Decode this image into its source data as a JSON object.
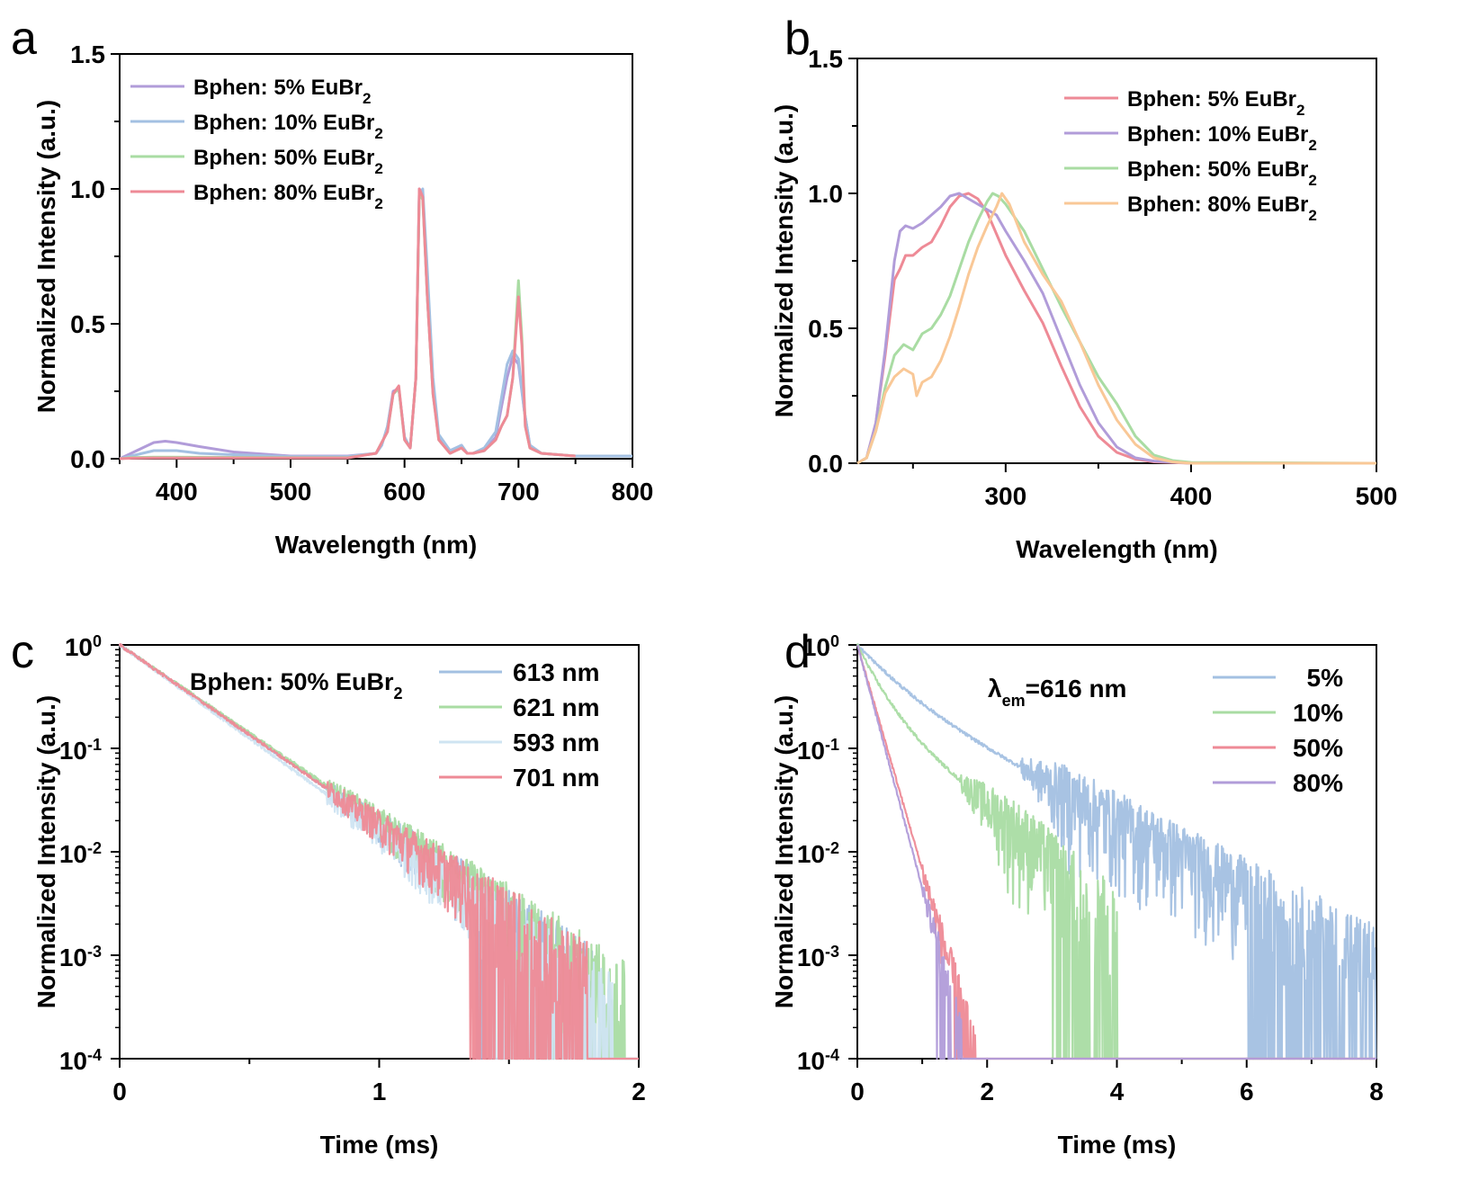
{
  "colors": {
    "purple": "#b19cd9",
    "blue": "#a3c0e2",
    "green": "#a9dca3",
    "red": "#ee8a96",
    "orange": "#f9c897",
    "lightblue": "#cfe4f2",
    "axis": "#000000"
  },
  "chart_data": [
    {
      "panel": "a",
      "type": "line",
      "xlabel": "Wavelength (nm)",
      "ylabel": "Normalized Intensity (a.u.)",
      "xlim": [
        350,
        800
      ],
      "ylim": [
        0,
        1.5
      ],
      "yscale": "linear",
      "xticks": [
        "400",
        "500",
        "600",
        "700",
        "800"
      ],
      "yticks": [
        "0.0",
        "0.5",
        "1.0",
        "1.5"
      ],
      "legend_position": "top-left",
      "series": [
        {
          "name": "Bphen: 5% EuBr",
          "sub": "2",
          "color": "purple",
          "x": [
            350,
            360,
            370,
            380,
            390,
            400,
            420,
            450,
            500,
            550,
            575,
            580,
            585,
            590,
            595,
            600,
            605,
            610,
            613,
            616,
            620,
            625,
            630,
            640,
            650,
            655,
            660,
            670,
            680,
            690,
            695,
            700,
            705,
            710,
            720,
            750,
            800
          ],
          "y": [
            0.0,
            0.02,
            0.04,
            0.06,
            0.065,
            0.06,
            0.045,
            0.025,
            0.01,
            0.01,
            0.02,
            0.05,
            0.12,
            0.25,
            0.26,
            0.08,
            0.04,
            0.3,
            1.0,
            0.98,
            0.6,
            0.25,
            0.08,
            0.03,
            0.05,
            0.02,
            0.02,
            0.03,
            0.08,
            0.3,
            0.38,
            0.35,
            0.18,
            0.05,
            0.02,
            0.01,
            0.01
          ]
        },
        {
          "name": "Bphen: 10% EuBr",
          "sub": "2",
          "color": "blue",
          "x": [
            350,
            360,
            370,
            380,
            390,
            400,
            420,
            450,
            500,
            550,
            575,
            580,
            585,
            590,
            595,
            600,
            605,
            610,
            613,
            616,
            620,
            625,
            630,
            640,
            650,
            655,
            660,
            670,
            680,
            690,
            695,
            700,
            705,
            710,
            720,
            750,
            800
          ],
          "y": [
            0.0,
            0.01,
            0.02,
            0.03,
            0.03,
            0.03,
            0.02,
            0.015,
            0.008,
            0.008,
            0.02,
            0.05,
            0.12,
            0.24,
            0.26,
            0.08,
            0.04,
            0.3,
            0.98,
            1.0,
            0.7,
            0.3,
            0.09,
            0.03,
            0.05,
            0.02,
            0.02,
            0.04,
            0.1,
            0.35,
            0.4,
            0.37,
            0.18,
            0.05,
            0.02,
            0.01,
            0.01
          ]
        },
        {
          "name": "Bphen: 50% EuBr",
          "sub": "2",
          "color": "green",
          "x": [
            350,
            360,
            380,
            400,
            450,
            500,
            550,
            575,
            580,
            585,
            590,
            595,
            600,
            605,
            610,
            613,
            616,
            620,
            625,
            630,
            640,
            650,
            655,
            660,
            670,
            680,
            685,
            690,
            695,
            700,
            703,
            706,
            710,
            720,
            750
          ],
          "y": [
            0.0,
            0.004,
            0.006,
            0.006,
            0.005,
            0.004,
            0.004,
            0.02,
            0.06,
            0.1,
            0.24,
            0.26,
            0.07,
            0.04,
            0.3,
            0.98,
            0.96,
            0.6,
            0.24,
            0.07,
            0.02,
            0.04,
            0.02,
            0.02,
            0.03,
            0.07,
            0.12,
            0.16,
            0.3,
            0.66,
            0.45,
            0.12,
            0.04,
            0.02,
            0.01
          ]
        },
        {
          "name": "Bphen: 80% EuBr",
          "sub": "2",
          "color": "red",
          "x": [
            350,
            360,
            380,
            400,
            450,
            500,
            550,
            575,
            580,
            585,
            590,
            595,
            600,
            605,
            610,
            613,
            616,
            620,
            625,
            630,
            640,
            650,
            655,
            660,
            670,
            680,
            685,
            690,
            695,
            700,
            703,
            706,
            710,
            720,
            750
          ],
          "y": [
            0.0,
            0.002,
            0.003,
            0.003,
            0.003,
            0.003,
            0.003,
            0.02,
            0.06,
            0.1,
            0.24,
            0.27,
            0.07,
            0.04,
            0.3,
            1.0,
            0.97,
            0.6,
            0.24,
            0.07,
            0.02,
            0.04,
            0.02,
            0.02,
            0.03,
            0.07,
            0.12,
            0.16,
            0.3,
            0.6,
            0.42,
            0.12,
            0.04,
            0.02,
            0.01
          ]
        }
      ]
    },
    {
      "panel": "b",
      "type": "line",
      "xlabel": "Wavelength (nm)",
      "ylabel": "Normalized Intensity (a.u.)",
      "xlim": [
        220,
        500
      ],
      "ylim": [
        0,
        1.5
      ],
      "yscale": "linear",
      "xticks": [
        "300",
        "400",
        "500"
      ],
      "yticks": [
        "0.0",
        "0.5",
        "1.0",
        "1.5"
      ],
      "legend_position": "top-right",
      "series": [
        {
          "name": "Bphen: 5% EuBr",
          "sub": "2",
          "color": "red",
          "x": [
            220,
            225,
            230,
            235,
            240,
            243,
            246,
            250,
            255,
            260,
            265,
            270,
            275,
            280,
            285,
            290,
            295,
            300,
            310,
            320,
            330,
            340,
            350,
            360,
            370,
            380,
            400,
            500
          ],
          "y": [
            0.0,
            0.02,
            0.15,
            0.4,
            0.68,
            0.72,
            0.77,
            0.77,
            0.8,
            0.82,
            0.88,
            0.95,
            0.99,
            1.0,
            0.98,
            0.93,
            0.85,
            0.77,
            0.64,
            0.52,
            0.36,
            0.21,
            0.1,
            0.04,
            0.015,
            0.005,
            0.0,
            0.0
          ]
        },
        {
          "name": "Bphen: 10% EuBr",
          "sub": "2",
          "color": "purple",
          "x": [
            220,
            225,
            230,
            235,
            240,
            243,
            246,
            250,
            255,
            260,
            265,
            270,
            275,
            280,
            285,
            290,
            295,
            300,
            310,
            320,
            330,
            340,
            350,
            360,
            370,
            380,
            400,
            500
          ],
          "y": [
            0.0,
            0.02,
            0.15,
            0.42,
            0.75,
            0.86,
            0.88,
            0.87,
            0.89,
            0.92,
            0.95,
            0.99,
            1.0,
            0.98,
            0.96,
            0.94,
            0.92,
            0.86,
            0.75,
            0.63,
            0.46,
            0.29,
            0.15,
            0.06,
            0.02,
            0.008,
            0.0,
            0.0
          ]
        },
        {
          "name": "Bphen: 50% EuBr",
          "sub": "2",
          "color": "green",
          "x": [
            220,
            225,
            230,
            235,
            240,
            245,
            250,
            255,
            260,
            265,
            270,
            275,
            280,
            285,
            290,
            293,
            296,
            300,
            310,
            320,
            330,
            340,
            350,
            360,
            370,
            380,
            390,
            400,
            500
          ],
          "y": [
            0.0,
            0.02,
            0.12,
            0.28,
            0.4,
            0.44,
            0.42,
            0.48,
            0.5,
            0.55,
            0.62,
            0.72,
            0.82,
            0.9,
            0.97,
            1.0,
            0.99,
            0.96,
            0.86,
            0.72,
            0.58,
            0.45,
            0.32,
            0.22,
            0.1,
            0.03,
            0.01,
            0.003,
            0.0
          ]
        },
        {
          "name": "Bphen: 80% EuBr",
          "sub": "2",
          "color": "orange",
          "x": [
            220,
            225,
            230,
            235,
            240,
            245,
            250,
            252,
            255,
            260,
            265,
            270,
            275,
            280,
            285,
            290,
            295,
            298,
            302,
            310,
            320,
            330,
            340,
            350,
            360,
            370,
            380,
            390,
            400,
            500
          ],
          "y": [
            0.0,
            0.02,
            0.12,
            0.26,
            0.32,
            0.35,
            0.33,
            0.25,
            0.3,
            0.32,
            0.38,
            0.47,
            0.58,
            0.7,
            0.8,
            0.88,
            0.95,
            1.0,
            0.96,
            0.82,
            0.7,
            0.6,
            0.45,
            0.29,
            0.16,
            0.07,
            0.02,
            0.005,
            0.0,
            0.0
          ]
        }
      ]
    },
    {
      "panel": "c",
      "type": "line",
      "title": "Bphen: 50% EuBr",
      "title_sub": "2",
      "xlabel": "Time (ms)",
      "ylabel": "Normalized Intensity (a.u.)",
      "xlim": [
        0,
        2
      ],
      "ylim": [
        0.0001,
        1
      ],
      "yscale": "log",
      "xticks": [
        "0",
        "1",
        "2"
      ],
      "yticks_exp": [
        "0",
        "-1",
        "-2",
        "-3",
        "-4"
      ],
      "legend_position": "top-right",
      "series": [
        {
          "name": "613 nm",
          "color": "blue",
          "tau": 0.25,
          "noise_onset": 0.8,
          "noise_end": 1.82
        },
        {
          "name": "621 nm",
          "color": "green",
          "tau": 0.255,
          "noise_onset": 0.8,
          "noise_end": 1.95
        },
        {
          "name": "593 nm",
          "color": "lightblue",
          "tau": 0.24,
          "noise_onset": 0.8,
          "noise_end": 1.9
        },
        {
          "name": "701 nm",
          "color": "red",
          "tau": 0.25,
          "noise_onset": 0.8,
          "noise_end": 1.8
        }
      ]
    },
    {
      "panel": "d",
      "type": "line",
      "title": "λ",
      "title_sub": "em",
      "title_rest": "=616 nm",
      "xlabel": "Time (ms)",
      "ylabel": "Normalized Intensity (a.u.)",
      "xlim": [
        0,
        8
      ],
      "ylim": [
        0.0001,
        1
      ],
      "yscale": "log",
      "xticks": [
        "0",
        "2",
        "4",
        "6",
        "8"
      ],
      "yticks_exp": [
        "0",
        "-1",
        "-2",
        "-3",
        "-4"
      ],
      "legend_position": "top-right",
      "series": [
        {
          "name": "5%",
          "color": "blue",
          "a": 0.6,
          "tau1": 0.5,
          "b": 0.4,
          "tau2": 1.35,
          "noise_onset": 2.5,
          "noise_end": 8.0
        },
        {
          "name": "10%",
          "color": "green",
          "a": 0.7,
          "tau1": 0.28,
          "b": 0.3,
          "tau2": 0.85,
          "noise_onset": 1.6,
          "noise_end": 4.0
        },
        {
          "name": "50%",
          "color": "red",
          "a": 1.0,
          "tau1": 0.2,
          "b": 0.0,
          "tau2": 1.0,
          "noise_onset": 1.0,
          "noise_end": 2.0
        },
        {
          "name": "80%",
          "color": "purple",
          "a": 1.0,
          "tau1": 0.185,
          "b": 0.0,
          "tau2": 1.0,
          "noise_onset": 1.0,
          "noise_end": 1.6
        }
      ]
    }
  ],
  "panel_labels": {
    "a": "a",
    "b": "b",
    "c": "c",
    "d": "d"
  },
  "base10": "10"
}
